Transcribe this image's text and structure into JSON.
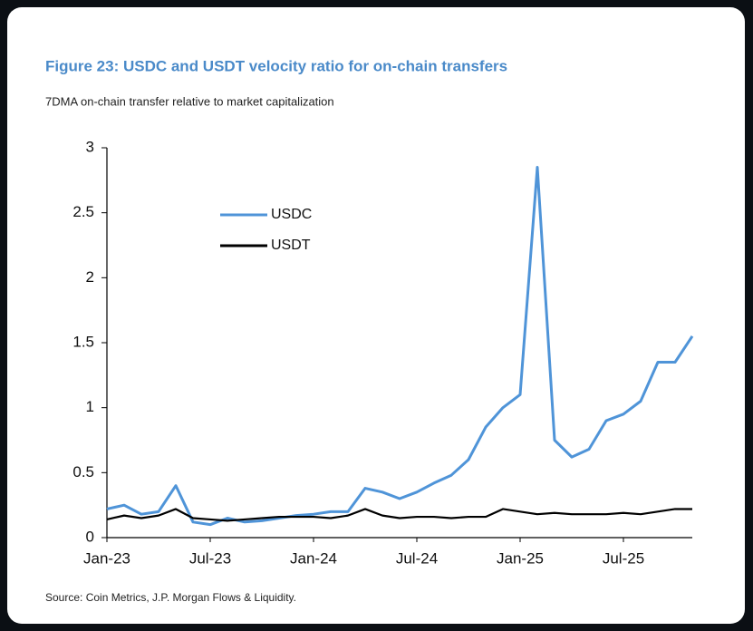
{
  "chart_data": {
    "type": "line",
    "title": "Figure 23: USDC and USDT velocity ratio for on-chain transfers",
    "subtitle": "7DMA on-chain transfer relative to market capitalization",
    "source": "Source: Coin Metrics, J.P. Morgan Flows & Liquidity.",
    "x": [
      "Jan-23",
      null,
      null,
      null,
      null,
      null,
      "Jul-23",
      null,
      null,
      null,
      null,
      null,
      "Jan-24",
      null,
      null,
      null,
      null,
      null,
      "Jul-24",
      null,
      null,
      null,
      null,
      null,
      "Jan-25",
      null,
      null,
      null,
      null,
      null,
      "Jul-25",
      null,
      null,
      null,
      null
    ],
    "series": [
      {
        "name": "USDC",
        "color": "#4f94d8",
        "values": [
          0.22,
          0.25,
          0.18,
          0.2,
          0.4,
          0.12,
          0.1,
          0.15,
          0.12,
          0.13,
          0.15,
          0.17,
          0.18,
          0.2,
          0.2,
          0.38,
          0.35,
          0.3,
          0.35,
          0.42,
          0.48,
          0.6,
          0.85,
          1.0,
          1.1,
          2.85,
          0.75,
          0.62,
          0.68,
          0.9,
          0.95,
          1.05,
          1.35,
          1.35,
          1.55
        ]
      },
      {
        "name": "USDT",
        "color": "#000000",
        "values": [
          0.14,
          0.17,
          0.15,
          0.17,
          0.22,
          0.15,
          0.14,
          0.13,
          0.14,
          0.15,
          0.16,
          0.16,
          0.16,
          0.15,
          0.17,
          0.22,
          0.17,
          0.15,
          0.16,
          0.16,
          0.15,
          0.16,
          0.16,
          0.22,
          0.2,
          0.18,
          0.19,
          0.18,
          0.18,
          0.18,
          0.19,
          0.18,
          0.2,
          0.22,
          0.22
        ]
      }
    ],
    "ylim": [
      0,
      3
    ],
    "yticks": [
      0,
      0.5,
      1,
      1.5,
      2,
      2.5,
      3
    ],
    "grid": false,
    "legend": "upper left"
  }
}
